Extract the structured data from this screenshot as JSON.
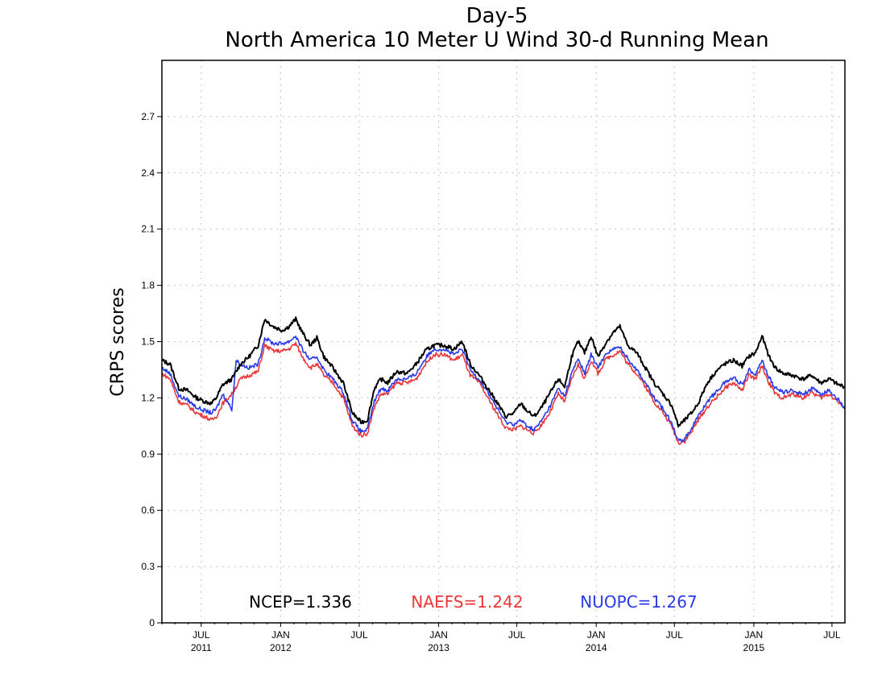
{
  "chart_data": {
    "type": "line",
    "title": "Day-5",
    "subtitle": "North America 10 Meter U Wind 30-d Running Mean",
    "xlabel": "",
    "ylabel": "CRPS scores",
    "x_range": [
      "2011-04-01",
      "2015-07-31"
    ],
    "ylim": [
      0,
      3.0
    ],
    "yticks": [
      "0",
      "0.3",
      "0.6",
      "0.9",
      "1.2",
      "1.5",
      "1.8",
      "2.1",
      "2.4",
      "2.7"
    ],
    "xticks": [
      {
        "date": "2011-07-01",
        "month": "JUL",
        "year": "2011"
      },
      {
        "date": "2012-01-01",
        "month": "JAN",
        "year": "2012"
      },
      {
        "date": "2012-07-01",
        "month": "JUL",
        "year": ""
      },
      {
        "date": "2013-01-01",
        "month": "JAN",
        "year": "2013"
      },
      {
        "date": "2013-07-01",
        "month": "JUL",
        "year": ""
      },
      {
        "date": "2014-01-01",
        "month": "JAN",
        "year": "2014"
      },
      {
        "date": "2014-07-01",
        "month": "JUL",
        "year": ""
      },
      {
        "date": "2015-01-01",
        "month": "JAN",
        "year": "2015"
      },
      {
        "date": "2015-07-01",
        "month": "JUL",
        "year": ""
      }
    ],
    "grid": true,
    "legend_position": "bottom",
    "series": [
      {
        "name": "NCEP",
        "legend": "NCEP=1.336",
        "color": "#000000",
        "points": [
          [
            "2011-04-01",
            1.4
          ],
          [
            "2011-04-20",
            1.38
          ],
          [
            "2011-05-10",
            1.25
          ],
          [
            "2011-05-30",
            1.24
          ],
          [
            "2011-06-20",
            1.2
          ],
          [
            "2011-07-10",
            1.18
          ],
          [
            "2011-07-25",
            1.17
          ],
          [
            "2011-08-05",
            1.2
          ],
          [
            "2011-08-20",
            1.27
          ],
          [
            "2011-09-10",
            1.3
          ],
          [
            "2011-09-30",
            1.38
          ],
          [
            "2011-10-20",
            1.42
          ],
          [
            "2011-11-10",
            1.48
          ],
          [
            "2011-11-25",
            1.62
          ],
          [
            "2011-12-15",
            1.58
          ],
          [
            "2012-01-05",
            1.56
          ],
          [
            "2012-01-20",
            1.58
          ],
          [
            "2012-02-05",
            1.62
          ],
          [
            "2012-02-20",
            1.55
          ],
          [
            "2012-03-10",
            1.48
          ],
          [
            "2012-03-25",
            1.52
          ],
          [
            "2012-04-10",
            1.42
          ],
          [
            "2012-05-01",
            1.36
          ],
          [
            "2012-05-25",
            1.28
          ],
          [
            "2012-06-15",
            1.12
          ],
          [
            "2012-07-05",
            1.07
          ],
          [
            "2012-07-20",
            1.08
          ],
          [
            "2012-08-05",
            1.25
          ],
          [
            "2012-08-20",
            1.3
          ],
          [
            "2012-09-05",
            1.28
          ],
          [
            "2012-09-25",
            1.34
          ],
          [
            "2012-10-20",
            1.33
          ],
          [
            "2012-11-10",
            1.38
          ],
          [
            "2012-12-01",
            1.45
          ],
          [
            "2012-12-20",
            1.48
          ],
          [
            "2013-01-15",
            1.48
          ],
          [
            "2013-02-05",
            1.46
          ],
          [
            "2013-02-25",
            1.5
          ],
          [
            "2013-03-15",
            1.38
          ],
          [
            "2013-04-05",
            1.32
          ],
          [
            "2013-04-25",
            1.25
          ],
          [
            "2013-05-15",
            1.18
          ],
          [
            "2013-06-05",
            1.1
          ],
          [
            "2013-06-25",
            1.12
          ],
          [
            "2013-07-10",
            1.17
          ],
          [
            "2013-07-25",
            1.13
          ],
          [
            "2013-08-10",
            1.1
          ],
          [
            "2013-08-25",
            1.14
          ],
          [
            "2013-09-15",
            1.22
          ],
          [
            "2013-10-05",
            1.3
          ],
          [
            "2013-10-20",
            1.26
          ],
          [
            "2013-11-05",
            1.42
          ],
          [
            "2013-11-20",
            1.5
          ],
          [
            "2013-12-05",
            1.44
          ],
          [
            "2013-12-20",
            1.53
          ],
          [
            "2014-01-05",
            1.42
          ],
          [
            "2014-01-25",
            1.5
          ],
          [
            "2014-02-10",
            1.55
          ],
          [
            "2014-02-25",
            1.58
          ],
          [
            "2014-03-15",
            1.48
          ],
          [
            "2014-04-05",
            1.44
          ],
          [
            "2014-04-25",
            1.36
          ],
          [
            "2014-05-15",
            1.28
          ],
          [
            "2014-06-05",
            1.22
          ],
          [
            "2014-06-25",
            1.16
          ],
          [
            "2014-07-10",
            1.05
          ],
          [
            "2014-07-25",
            1.08
          ],
          [
            "2014-08-10",
            1.12
          ],
          [
            "2014-08-25",
            1.17
          ],
          [
            "2014-09-15",
            1.28
          ],
          [
            "2014-10-05",
            1.34
          ],
          [
            "2014-10-25",
            1.38
          ],
          [
            "2014-11-15",
            1.4
          ],
          [
            "2014-12-05",
            1.37
          ],
          [
            "2014-12-20",
            1.42
          ],
          [
            "2015-01-05",
            1.44
          ],
          [
            "2015-01-20",
            1.53
          ],
          [
            "2015-02-05",
            1.42
          ],
          [
            "2015-02-20",
            1.36
          ],
          [
            "2015-03-10",
            1.33
          ],
          [
            "2015-04-01",
            1.32
          ],
          [
            "2015-04-25",
            1.3
          ],
          [
            "2015-05-15",
            1.32
          ],
          [
            "2015-06-05",
            1.28
          ],
          [
            "2015-06-25",
            1.3
          ],
          [
            "2015-07-15",
            1.27
          ],
          [
            "2015-07-31",
            1.26
          ]
        ]
      },
      {
        "name": "NAEFS",
        "legend": "NAEFS=1.242",
        "color": "#e8383a",
        "points": [
          [
            "2011-04-01",
            1.33
          ],
          [
            "2011-04-20",
            1.3
          ],
          [
            "2011-05-10",
            1.18
          ],
          [
            "2011-05-30",
            1.16
          ],
          [
            "2011-06-20",
            1.12
          ],
          [
            "2011-07-10",
            1.1
          ],
          [
            "2011-07-25",
            1.08
          ],
          [
            "2011-08-05",
            1.1
          ],
          [
            "2011-08-20",
            1.17
          ],
          [
            "2011-09-10",
            1.22
          ],
          [
            "2011-09-30",
            1.3
          ],
          [
            "2011-10-20",
            1.32
          ],
          [
            "2011-11-10",
            1.34
          ],
          [
            "2011-11-25",
            1.48
          ],
          [
            "2011-12-15",
            1.45
          ],
          [
            "2012-01-05",
            1.45
          ],
          [
            "2012-01-20",
            1.46
          ],
          [
            "2012-02-05",
            1.49
          ],
          [
            "2012-02-20",
            1.42
          ],
          [
            "2012-03-10",
            1.36
          ],
          [
            "2012-03-25",
            1.38
          ],
          [
            "2012-04-10",
            1.32
          ],
          [
            "2012-05-01",
            1.28
          ],
          [
            "2012-05-25",
            1.2
          ],
          [
            "2012-06-15",
            1.05
          ],
          [
            "2012-07-05",
            1.0
          ],
          [
            "2012-07-20",
            1.01
          ],
          [
            "2012-08-05",
            1.15
          ],
          [
            "2012-08-20",
            1.22
          ],
          [
            "2012-09-05",
            1.22
          ],
          [
            "2012-09-25",
            1.28
          ],
          [
            "2012-10-20",
            1.28
          ],
          [
            "2012-11-10",
            1.3
          ],
          [
            "2012-12-01",
            1.38
          ],
          [
            "2012-12-20",
            1.43
          ],
          [
            "2013-01-15",
            1.43
          ],
          [
            "2013-02-05",
            1.4
          ],
          [
            "2013-02-25",
            1.43
          ],
          [
            "2013-03-15",
            1.32
          ],
          [
            "2013-04-05",
            1.28
          ],
          [
            "2013-04-25",
            1.2
          ],
          [
            "2013-05-15",
            1.12
          ],
          [
            "2013-06-05",
            1.04
          ],
          [
            "2013-06-25",
            1.03
          ],
          [
            "2013-07-10",
            1.05
          ],
          [
            "2013-07-25",
            1.03
          ],
          [
            "2013-08-10",
            1.01
          ],
          [
            "2013-08-25",
            1.05
          ],
          [
            "2013-09-15",
            1.12
          ],
          [
            "2013-10-05",
            1.22
          ],
          [
            "2013-10-20",
            1.18
          ],
          [
            "2013-11-05",
            1.3
          ],
          [
            "2013-11-20",
            1.38
          ],
          [
            "2013-12-05",
            1.3
          ],
          [
            "2013-12-20",
            1.4
          ],
          [
            "2014-01-05",
            1.33
          ],
          [
            "2014-01-25",
            1.41
          ],
          [
            "2014-02-10",
            1.43
          ],
          [
            "2014-02-25",
            1.45
          ],
          [
            "2014-03-15",
            1.38
          ],
          [
            "2014-04-05",
            1.33
          ],
          [
            "2014-04-25",
            1.26
          ],
          [
            "2014-05-15",
            1.18
          ],
          [
            "2014-06-05",
            1.12
          ],
          [
            "2014-06-25",
            1.05
          ],
          [
            "2014-07-10",
            0.96
          ],
          [
            "2014-07-25",
            0.97
          ],
          [
            "2014-08-10",
            1.02
          ],
          [
            "2014-08-25",
            1.08
          ],
          [
            "2014-09-15",
            1.15
          ],
          [
            "2014-10-05",
            1.2
          ],
          [
            "2014-10-25",
            1.25
          ],
          [
            "2014-11-15",
            1.28
          ],
          [
            "2014-12-05",
            1.24
          ],
          [
            "2014-12-20",
            1.32
          ],
          [
            "2015-01-05",
            1.3
          ],
          [
            "2015-01-20",
            1.37
          ],
          [
            "2015-02-05",
            1.28
          ],
          [
            "2015-02-20",
            1.22
          ],
          [
            "2015-03-10",
            1.2
          ],
          [
            "2015-04-01",
            1.22
          ],
          [
            "2015-04-25",
            1.2
          ],
          [
            "2015-05-15",
            1.23
          ],
          [
            "2015-06-05",
            1.2
          ],
          [
            "2015-06-25",
            1.22
          ],
          [
            "2015-07-15",
            1.18
          ],
          [
            "2015-07-31",
            1.14
          ]
        ]
      },
      {
        "name": "NUOPC",
        "legend": "NUOPC=1.267",
        "color": "#2a3be6",
        "points": [
          [
            "2011-04-01",
            1.36
          ],
          [
            "2011-04-20",
            1.33
          ],
          [
            "2011-05-10",
            1.21
          ],
          [
            "2011-05-30",
            1.19
          ],
          [
            "2011-06-20",
            1.15
          ],
          [
            "2011-07-10",
            1.13
          ],
          [
            "2011-07-25",
            1.12
          ],
          [
            "2011-08-05",
            1.14
          ],
          [
            "2011-08-20",
            1.22
          ],
          [
            "2011-09-10",
            1.14
          ],
          [
            "2011-09-20",
            1.4
          ],
          [
            "2011-09-30",
            1.38
          ],
          [
            "2011-10-20",
            1.36
          ],
          [
            "2011-11-10",
            1.38
          ],
          [
            "2011-11-25",
            1.52
          ],
          [
            "2011-12-15",
            1.49
          ],
          [
            "2012-01-05",
            1.49
          ],
          [
            "2012-01-20",
            1.5
          ],
          [
            "2012-02-05",
            1.53
          ],
          [
            "2012-02-20",
            1.46
          ],
          [
            "2012-03-10",
            1.4
          ],
          [
            "2012-03-25",
            1.42
          ],
          [
            "2012-04-10",
            1.35
          ],
          [
            "2012-05-01",
            1.3
          ],
          [
            "2012-05-25",
            1.23
          ],
          [
            "2012-06-15",
            1.08
          ],
          [
            "2012-07-05",
            1.02
          ],
          [
            "2012-07-20",
            1.03
          ],
          [
            "2012-08-05",
            1.18
          ],
          [
            "2012-08-20",
            1.25
          ],
          [
            "2012-09-05",
            1.24
          ],
          [
            "2012-09-25",
            1.3
          ],
          [
            "2012-10-20",
            1.3
          ],
          [
            "2012-11-10",
            1.33
          ],
          [
            "2012-12-01",
            1.41
          ],
          [
            "2012-12-20",
            1.46
          ],
          [
            "2013-01-15",
            1.46
          ],
          [
            "2013-02-05",
            1.43
          ],
          [
            "2013-02-25",
            1.46
          ],
          [
            "2013-03-15",
            1.35
          ],
          [
            "2013-04-05",
            1.3
          ],
          [
            "2013-04-25",
            1.23
          ],
          [
            "2013-05-15",
            1.15
          ],
          [
            "2013-06-05",
            1.07
          ],
          [
            "2013-06-25",
            1.06
          ],
          [
            "2013-07-10",
            1.08
          ],
          [
            "2013-07-25",
            1.05
          ],
          [
            "2013-08-10",
            1.03
          ],
          [
            "2013-08-25",
            1.07
          ],
          [
            "2013-09-15",
            1.15
          ],
          [
            "2013-10-05",
            1.25
          ],
          [
            "2013-10-20",
            1.21
          ],
          [
            "2013-11-05",
            1.33
          ],
          [
            "2013-11-20",
            1.41
          ],
          [
            "2013-12-05",
            1.33
          ],
          [
            "2013-12-20",
            1.43
          ],
          [
            "2014-01-05",
            1.36
          ],
          [
            "2014-01-25",
            1.44
          ],
          [
            "2014-02-10",
            1.46
          ],
          [
            "2014-02-25",
            1.47
          ],
          [
            "2014-03-15",
            1.41
          ],
          [
            "2014-04-05",
            1.35
          ],
          [
            "2014-04-25",
            1.28
          ],
          [
            "2014-05-15",
            1.2
          ],
          [
            "2014-06-05",
            1.14
          ],
          [
            "2014-06-25",
            1.07
          ],
          [
            "2014-07-10",
            0.97
          ],
          [
            "2014-07-25",
            0.98
          ],
          [
            "2014-08-10",
            1.04
          ],
          [
            "2014-08-25",
            1.1
          ],
          [
            "2014-09-15",
            1.18
          ],
          [
            "2014-10-05",
            1.23
          ],
          [
            "2014-10-25",
            1.28
          ],
          [
            "2014-11-15",
            1.31
          ],
          [
            "2014-12-05",
            1.27
          ],
          [
            "2014-12-20",
            1.35
          ],
          [
            "2015-01-05",
            1.33
          ],
          [
            "2015-01-20",
            1.4
          ],
          [
            "2015-02-05",
            1.31
          ],
          [
            "2015-02-20",
            1.25
          ],
          [
            "2015-03-10",
            1.23
          ],
          [
            "2015-04-01",
            1.24
          ],
          [
            "2015-04-25",
            1.22
          ],
          [
            "2015-05-15",
            1.25
          ],
          [
            "2015-06-05",
            1.22
          ],
          [
            "2015-06-25",
            1.24
          ],
          [
            "2015-07-15",
            1.19
          ],
          [
            "2015-07-31",
            1.14
          ]
        ]
      }
    ]
  }
}
